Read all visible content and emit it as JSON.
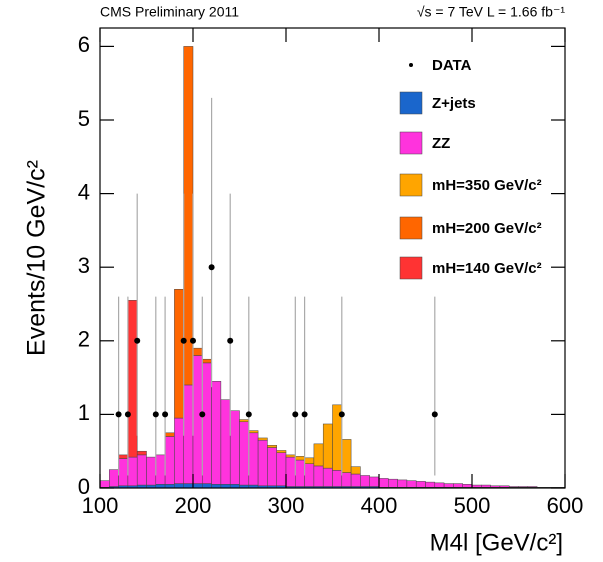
{
  "chart_data": {
    "type": "stacked_histogram",
    "header_left": "CMS Preliminary 2011",
    "header_right": "√s = 7 TeV  L = 1.66 fb⁻¹",
    "x_label": "M4l [GeV/c²]",
    "y_label": "Events/10 GeV/c²",
    "xlim": [
      100,
      600
    ],
    "ylim": [
      0,
      6.25
    ],
    "xticks": [
      100,
      200,
      300,
      400,
      500,
      600
    ],
    "yticks": [
      0,
      1,
      2,
      3,
      4,
      5,
      6
    ],
    "legend": "upper right",
    "bins": [
      100,
      110,
      120,
      130,
      140,
      150,
      160,
      170,
      180,
      190,
      200,
      210,
      220,
      230,
      240,
      250,
      260,
      270,
      280,
      290,
      300,
      310,
      320,
      330,
      340,
      350,
      360,
      370,
      380,
      390,
      400,
      410,
      420,
      430,
      440,
      450,
      460,
      470,
      480,
      490,
      500,
      510,
      520,
      530,
      540,
      550,
      560,
      570,
      580,
      590,
      600
    ],
    "series": [
      {
        "name": "Z+jets",
        "color": "#1a66cc",
        "values": [
          0.01,
          0.02,
          0.03,
          0.03,
          0.04,
          0.04,
          0.05,
          0.05,
          0.06,
          0.06,
          0.06,
          0.06,
          0.05,
          0.05,
          0.05,
          0.04,
          0.04,
          0.03,
          0.03,
          0.03,
          0.02,
          0.02,
          0.02,
          0.02,
          0.02,
          0.02,
          0.02,
          0.02,
          0.02,
          0.02,
          0.01,
          0.01,
          0.01,
          0.01,
          0.01,
          0.01,
          0.01,
          0.01,
          0.01,
          0.01,
          0.01,
          0.01,
          0.01,
          0.01,
          0.01,
          0.01,
          0.01,
          0.01,
          0.01,
          0.01
        ]
      },
      {
        "name": "ZZ",
        "color": "#ff33dd",
        "values": [
          0.09,
          0.23,
          0.37,
          0.39,
          0.41,
          0.38,
          0.4,
          0.65,
          0.89,
          1.34,
          1.74,
          1.64,
          1.4,
          1.15,
          1.0,
          0.86,
          0.71,
          0.62,
          0.52,
          0.45,
          0.4,
          0.36,
          0.31,
          0.28,
          0.25,
          0.22,
          0.19,
          0.17,
          0.15,
          0.13,
          0.12,
          0.11,
          0.1,
          0.09,
          0.08,
          0.07,
          0.06,
          0.05,
          0.05,
          0.04,
          0.03,
          0.03,
          0.02,
          0.02,
          0.01,
          0.01,
          0.01,
          0,
          0,
          0
        ]
      },
      {
        "name": "mH=350 GeV/c²",
        "color": "#ffa500",
        "values": [
          0,
          0,
          0,
          0,
          0,
          0,
          0,
          0,
          0,
          0,
          0,
          0,
          0,
          0,
          0,
          0.03,
          0.03,
          0.03,
          0.03,
          0.03,
          0.03,
          0.05,
          0.08,
          0.3,
          0.6,
          0.89,
          0.45,
          0.1,
          0,
          0,
          0,
          0,
          0,
          0,
          0,
          0,
          0,
          0,
          0,
          0,
          0,
          0,
          0,
          0,
          0,
          0,
          0,
          0,
          0,
          0
        ]
      },
      {
        "name": "mH=200 GeV/c²",
        "color": "#ff6600",
        "values": [
          0,
          0,
          0,
          0,
          0,
          0,
          0,
          0.05,
          1.75,
          4.6,
          0.1,
          0.05,
          0,
          0,
          0,
          0,
          0,
          0,
          0,
          0,
          0,
          0,
          0,
          0,
          0,
          0,
          0,
          0,
          0,
          0,
          0,
          0,
          0,
          0,
          0,
          0,
          0,
          0,
          0,
          0,
          0,
          0,
          0,
          0,
          0,
          0,
          0,
          0,
          0,
          0
        ]
      },
      {
        "name": "mH=140 GeV/c²",
        "color": "#ff3333",
        "values": [
          0,
          0,
          0.05,
          2.13,
          0.05,
          0,
          0,
          0,
          0,
          0,
          0,
          0,
          0,
          0,
          0,
          0,
          0,
          0,
          0,
          0,
          0,
          0,
          0,
          0,
          0,
          0,
          0,
          0,
          0,
          0,
          0,
          0,
          0,
          0,
          0,
          0,
          0,
          0,
          0,
          0,
          0,
          0,
          0,
          0,
          0,
          0,
          0,
          0,
          0,
          0
        ]
      }
    ],
    "data_points": {
      "name": "DATA",
      "color": "#000000",
      "x": [
        120,
        130,
        140,
        160,
        170,
        190,
        200,
        210,
        220,
        240,
        260,
        310,
        320,
        360,
        460
      ],
      "values": [
        1,
        1,
        2,
        1,
        1,
        2,
        2,
        1,
        3,
        2,
        1,
        1,
        1,
        1,
        1
      ],
      "err_low": [
        0.83,
        0.83,
        1.29,
        0.83,
        0.83,
        1.29,
        1.29,
        0.83,
        1.63,
        1.29,
        0.83,
        0.83,
        0.83,
        0.83,
        0.83
      ],
      "err_high": [
        1.6,
        1.6,
        2.0,
        1.6,
        1.6,
        2.0,
        2.0,
        1.6,
        2.3,
        2.0,
        1.6,
        1.6,
        1.6,
        1.6,
        1.6
      ]
    }
  }
}
